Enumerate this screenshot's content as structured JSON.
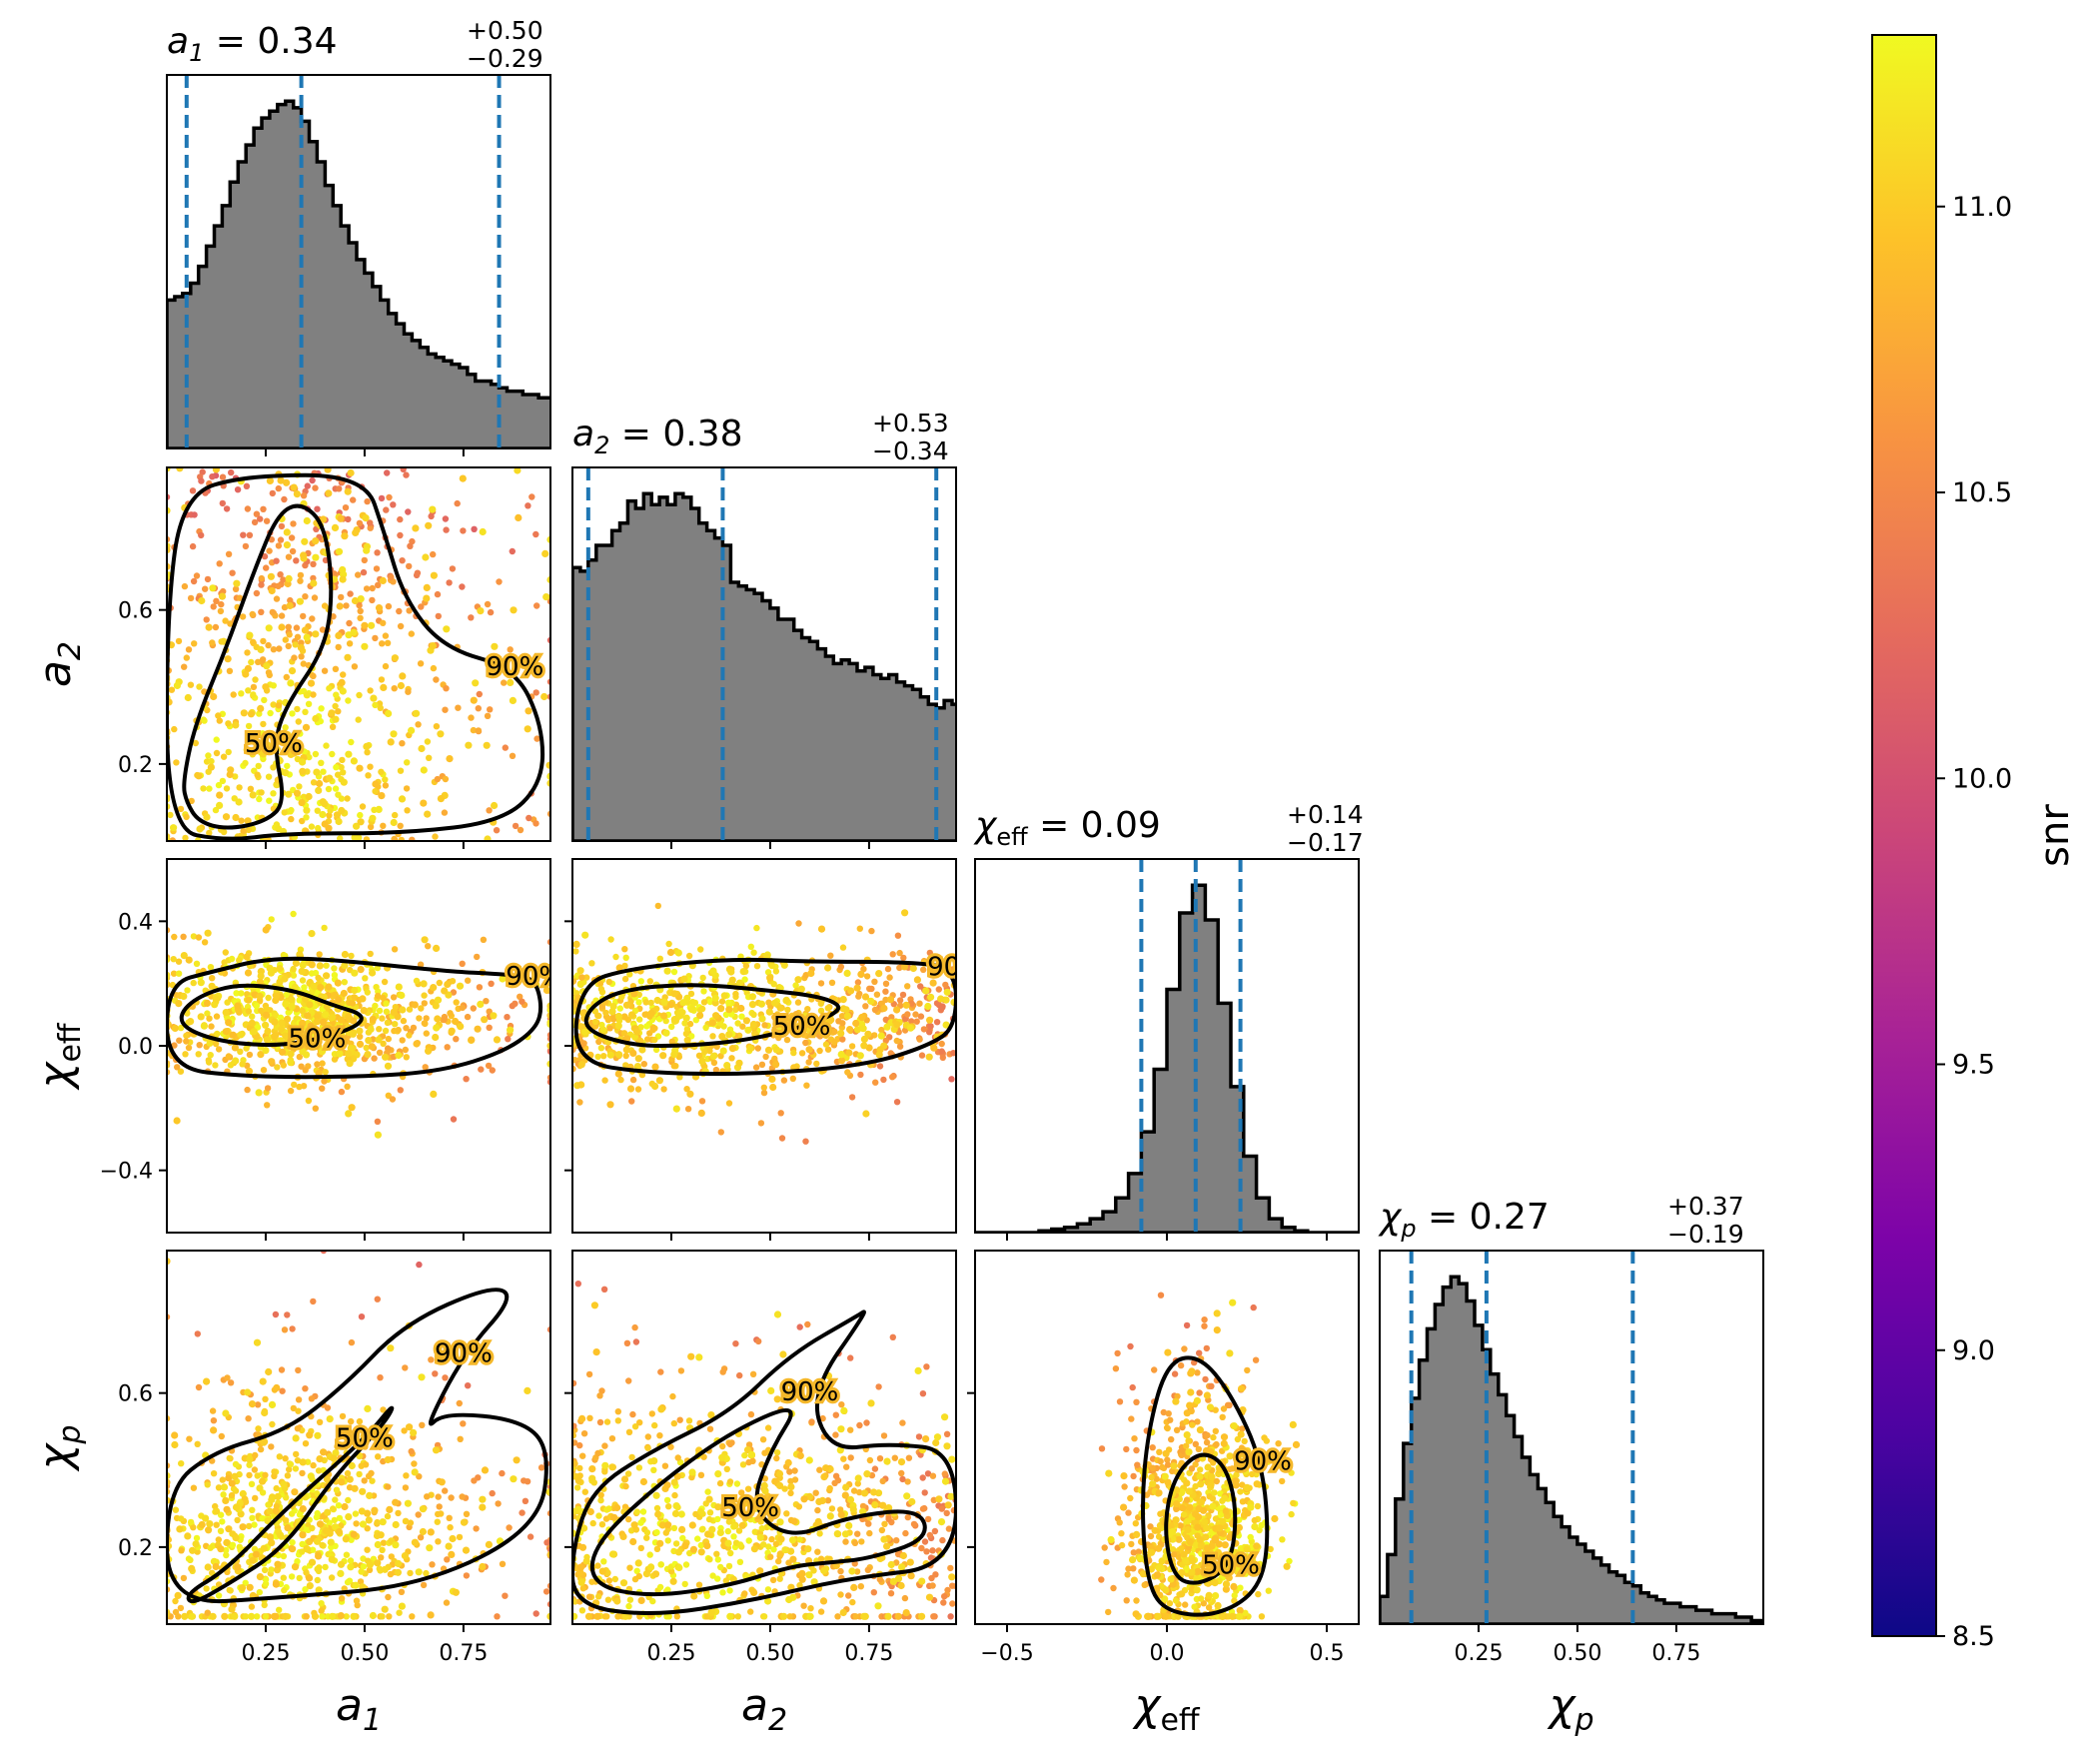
{
  "chart_data": {
    "type": "corner",
    "colormap": "plasma",
    "colors": {
      "histogram_fill": "#808080",
      "quantile_line": "#1f77b4",
      "contour": "#000000"
    },
    "parameters": [
      {
        "id": "a1",
        "label": "a",
        "label_sub": "1",
        "label_sub_style": "italic",
        "range": [
          0.0,
          0.97
        ],
        "ticks": [
          0.25,
          0.5,
          0.75
        ],
        "tick_labels": [
          "0.25",
          "0.50",
          "0.75"
        ],
        "title": {
          "median": "0.34",
          "plus": "+0.50",
          "minus": "−0.29"
        },
        "quantiles": [
          0.05,
          0.34,
          0.84
        ],
        "hist_x": [
          0.0,
          0.02,
          0.04,
          0.06,
          0.08,
          0.1,
          0.12,
          0.14,
          0.16,
          0.18,
          0.2,
          0.22,
          0.24,
          0.26,
          0.28,
          0.3,
          0.32,
          0.34,
          0.36,
          0.38,
          0.4,
          0.42,
          0.44,
          0.46,
          0.48,
          0.5,
          0.52,
          0.54,
          0.56,
          0.58,
          0.6,
          0.62,
          0.64,
          0.66,
          0.68,
          0.7,
          0.72,
          0.74,
          0.76,
          0.78,
          0.8,
          0.82,
          0.84,
          0.86,
          0.88,
          0.9,
          0.92,
          0.94,
          0.96
        ],
        "hist_counts": [
          0.44,
          0.45,
          0.46,
          0.49,
          0.54,
          0.6,
          0.66,
          0.72,
          0.79,
          0.85,
          0.9,
          0.95,
          0.98,
          1.0,
          1.02,
          1.03,
          1.01,
          0.97,
          0.91,
          0.85,
          0.78,
          0.72,
          0.66,
          0.61,
          0.56,
          0.52,
          0.48,
          0.44,
          0.4,
          0.37,
          0.34,
          0.32,
          0.3,
          0.28,
          0.27,
          0.26,
          0.25,
          0.24,
          0.22,
          0.2,
          0.2,
          0.19,
          0.18,
          0.17,
          0.17,
          0.16,
          0.16,
          0.15,
          0.15
        ]
      },
      {
        "id": "a2",
        "label": "a",
        "label_sub": "2",
        "label_sub_style": "italic",
        "range": [
          0.0,
          0.97
        ],
        "ticks": [
          0.25,
          0.5,
          0.75
        ],
        "tick_labels": [
          "0.25",
          "0.50",
          "0.75"
        ],
        "y_ticks": [
          0.2,
          0.6
        ],
        "y_tick_labels": [
          "0.2",
          "0.6"
        ],
        "title": {
          "median": "0.38",
          "plus": "+0.53",
          "minus": "−0.34"
        },
        "quantiles": [
          0.04,
          0.38,
          0.92
        ],
        "hist_x": [
          0.0,
          0.02,
          0.04,
          0.06,
          0.08,
          0.1,
          0.12,
          0.14,
          0.16,
          0.18,
          0.2,
          0.22,
          0.24,
          0.26,
          0.28,
          0.3,
          0.32,
          0.34,
          0.36,
          0.38,
          0.4,
          0.42,
          0.44,
          0.46,
          0.48,
          0.5,
          0.52,
          0.54,
          0.56,
          0.58,
          0.6,
          0.62,
          0.64,
          0.66,
          0.68,
          0.7,
          0.72,
          0.74,
          0.76,
          0.78,
          0.8,
          0.82,
          0.84,
          0.86,
          0.88,
          0.9,
          0.92,
          0.94,
          0.96
        ],
        "hist_counts": [
          0.74,
          0.73,
          0.76,
          0.8,
          0.8,
          0.84,
          0.86,
          0.92,
          0.9,
          0.94,
          0.91,
          0.93,
          0.91,
          0.94,
          0.93,
          0.9,
          0.86,
          0.84,
          0.82,
          0.8,
          0.7,
          0.69,
          0.68,
          0.67,
          0.65,
          0.63,
          0.6,
          0.6,
          0.57,
          0.55,
          0.54,
          0.52,
          0.5,
          0.48,
          0.49,
          0.48,
          0.46,
          0.47,
          0.45,
          0.44,
          0.45,
          0.43,
          0.42,
          0.41,
          0.39,
          0.37,
          0.36,
          0.38,
          0.37
        ]
      },
      {
        "id": "chi_eff",
        "label": "χ",
        "label_sub": "eff",
        "label_sub_style": "upright",
        "range": [
          -0.6,
          0.6
        ],
        "ticks": [
          -0.5,
          0.0,
          0.5
        ],
        "tick_labels": [
          "−0.5",
          "0.0",
          "0.5"
        ],
        "y_ticks": [
          -0.4,
          0.0,
          0.4
        ],
        "y_tick_labels": [
          "−0.4",
          "0.0",
          "0.4"
        ],
        "title": {
          "median": "0.09",
          "plus": "+0.14",
          "minus": "−0.17"
        },
        "quantiles": [
          -0.08,
          0.09,
          0.23
        ],
        "hist_x": [
          -0.6,
          -0.56,
          -0.52,
          -0.48,
          -0.44,
          -0.4,
          -0.36,
          -0.32,
          -0.28,
          -0.24,
          -0.2,
          -0.16,
          -0.12,
          -0.08,
          -0.04,
          0.0,
          0.04,
          0.08,
          0.12,
          0.16,
          0.2,
          0.24,
          0.28,
          0.32,
          0.36,
          0.4,
          0.44,
          0.48,
          0.52,
          0.56
        ],
        "hist_counts": [
          0.0,
          0.0,
          0.0,
          0.0,
          0.0,
          0.005,
          0.01,
          0.015,
          0.025,
          0.04,
          0.06,
          0.1,
          0.17,
          0.29,
          0.47,
          0.7,
          0.92,
          1.0,
          0.9,
          0.66,
          0.42,
          0.22,
          0.1,
          0.04,
          0.015,
          0.005,
          0.0,
          0.0,
          0.0,
          0.0
        ]
      },
      {
        "id": "chi_p",
        "label": "χ",
        "label_sub": "p",
        "label_sub_style": "italic",
        "range": [
          0.0,
          0.97
        ],
        "ticks": [
          0.25,
          0.5,
          0.75
        ],
        "tick_labels": [
          "0.25",
          "0.50",
          "0.75"
        ],
        "y_ticks": [
          0.2,
          0.6
        ],
        "y_tick_labels": [
          "0.2",
          "0.6"
        ],
        "title": {
          "median": "0.27",
          "plus": "+0.37",
          "minus": "−0.19"
        },
        "quantiles": [
          0.08,
          0.27,
          0.64
        ],
        "hist_x": [
          0.0,
          0.02,
          0.04,
          0.06,
          0.08,
          0.1,
          0.12,
          0.14,
          0.16,
          0.18,
          0.2,
          0.22,
          0.24,
          0.26,
          0.28,
          0.3,
          0.32,
          0.34,
          0.36,
          0.38,
          0.4,
          0.42,
          0.44,
          0.46,
          0.48,
          0.5,
          0.52,
          0.54,
          0.56,
          0.58,
          0.6,
          0.62,
          0.64,
          0.66,
          0.68,
          0.7,
          0.72,
          0.74,
          0.76,
          0.78,
          0.8,
          0.82,
          0.84,
          0.86,
          0.88,
          0.9,
          0.92,
          0.94,
          0.96
        ],
        "hist_counts": [
          0.08,
          0.2,
          0.36,
          0.52,
          0.65,
          0.76,
          0.85,
          0.92,
          0.97,
          1.0,
          0.98,
          0.93,
          0.86,
          0.79,
          0.72,
          0.66,
          0.6,
          0.54,
          0.48,
          0.43,
          0.39,
          0.35,
          0.31,
          0.28,
          0.25,
          0.23,
          0.21,
          0.19,
          0.17,
          0.15,
          0.14,
          0.12,
          0.11,
          0.09,
          0.08,
          0.07,
          0.06,
          0.06,
          0.05,
          0.05,
          0.04,
          0.04,
          0.03,
          0.03,
          0.03,
          0.02,
          0.02,
          0.01,
          0.01
        ]
      }
    ],
    "contour_levels": [
      "50%",
      "90%"
    ],
    "contours": {
      "a1_a2": {
        "c50": [
          [
            0.05,
            0.1
          ],
          [
            0.08,
            0.05
          ],
          [
            0.15,
            0.03
          ],
          [
            0.25,
            0.05
          ],
          [
            0.3,
            0.1
          ],
          [
            0.27,
            0.25
          ],
          [
            0.3,
            0.35
          ],
          [
            0.4,
            0.5
          ],
          [
            0.42,
            0.65
          ],
          [
            0.4,
            0.82
          ],
          [
            0.34,
            0.88
          ],
          [
            0.28,
            0.85
          ],
          [
            0.22,
            0.7
          ],
          [
            0.15,
            0.5
          ],
          [
            0.07,
            0.3
          ],
          [
            0.04,
            0.15
          ]
        ],
        "c90": [
          [
            0.0,
            0.03
          ],
          [
            0.15,
            0.0
          ],
          [
            0.3,
            0.02
          ],
          [
            0.6,
            0.02
          ],
          [
            0.85,
            0.05
          ],
          [
            0.95,
            0.15
          ],
          [
            0.95,
            0.3
          ],
          [
            0.88,
            0.45
          ],
          [
            0.7,
            0.5
          ],
          [
            0.6,
            0.63
          ],
          [
            0.55,
            0.8
          ],
          [
            0.5,
            0.95
          ],
          [
            0.2,
            0.95
          ],
          [
            0.04,
            0.9
          ],
          [
            0.0,
            0.6
          ]
        ]
      },
      "a1_chi_eff": {
        "c50": [
          [
            0.05,
            0.05
          ],
          [
            0.15,
            0.01
          ],
          [
            0.28,
            0.0
          ],
          [
            0.38,
            0.02
          ],
          [
            0.48,
            0.06
          ],
          [
            0.5,
            0.1
          ],
          [
            0.42,
            0.13
          ],
          [
            0.32,
            0.18
          ],
          [
            0.18,
            0.2
          ],
          [
            0.08,
            0.16
          ],
          [
            0.03,
            0.1
          ]
        ],
        "c90": [
          [
            0.0,
            -0.07
          ],
          [
            0.2,
            -0.1
          ],
          [
            0.5,
            -0.1
          ],
          [
            0.7,
            -0.08
          ],
          [
            0.85,
            -0.02
          ],
          [
            0.93,
            0.05
          ],
          [
            0.95,
            0.12
          ],
          [
            0.93,
            0.22
          ],
          [
            0.85,
            0.23
          ],
          [
            0.7,
            0.24
          ],
          [
            0.4,
            0.28
          ],
          [
            0.25,
            0.28
          ],
          [
            0.12,
            0.24
          ],
          [
            0.0,
            0.2
          ]
        ]
      },
      "a2_chi_eff": {
        "c50": [
          [
            0.03,
            0.05
          ],
          [
            0.15,
            0.0
          ],
          [
            0.3,
            0.0
          ],
          [
            0.45,
            0.02
          ],
          [
            0.58,
            0.06
          ],
          [
            0.66,
            0.1
          ],
          [
            0.68,
            0.13
          ],
          [
            0.62,
            0.16
          ],
          [
            0.48,
            0.18
          ],
          [
            0.3,
            0.2
          ],
          [
            0.12,
            0.18
          ],
          [
            0.04,
            0.12
          ]
        ],
        "c90": [
          [
            0.0,
            -0.05
          ],
          [
            0.2,
            -0.09
          ],
          [
            0.5,
            -0.09
          ],
          [
            0.75,
            -0.06
          ],
          [
            0.9,
            0.0
          ],
          [
            0.97,
            0.06
          ],
          [
            0.97,
            0.25
          ],
          [
            0.85,
            0.27
          ],
          [
            0.6,
            0.27
          ],
          [
            0.4,
            0.28
          ],
          [
            0.15,
            0.25
          ],
          [
            0.02,
            0.2
          ]
        ]
      },
      "a1_chi_p": {
        "c50": [
          [
            0.05,
            0.08
          ],
          [
            0.15,
            0.14
          ],
          [
            0.3,
            0.3
          ],
          [
            0.5,
            0.48
          ],
          [
            0.58,
            0.58
          ],
          [
            0.55,
            0.52
          ],
          [
            0.42,
            0.38
          ],
          [
            0.3,
            0.2
          ],
          [
            0.15,
            0.1
          ],
          [
            0.06,
            0.05
          ]
        ],
        "c90": [
          [
            0.0,
            0.05
          ],
          [
            0.3,
            0.07
          ],
          [
            0.65,
            0.1
          ],
          [
            0.94,
            0.25
          ],
          [
            0.97,
            0.45
          ],
          [
            0.9,
            0.53
          ],
          [
            0.7,
            0.55
          ],
          [
            0.65,
            0.5
          ],
          [
            0.75,
            0.7
          ],
          [
            0.88,
            0.85
          ],
          [
            0.82,
            0.88
          ],
          [
            0.6,
            0.78
          ],
          [
            0.45,
            0.62
          ],
          [
            0.3,
            0.5
          ],
          [
            0.12,
            0.45
          ],
          [
            0.0,
            0.35
          ]
        ]
      },
      "a2_chi_p": {
        "c50": [
          [
            0.05,
            0.2
          ],
          [
            0.2,
            0.35
          ],
          [
            0.4,
            0.5
          ],
          [
            0.58,
            0.58
          ],
          [
            0.5,
            0.45
          ],
          [
            0.45,
            0.3
          ],
          [
            0.55,
            0.22
          ],
          [
            0.7,
            0.28
          ],
          [
            0.88,
            0.3
          ],
          [
            0.9,
            0.22
          ],
          [
            0.75,
            0.17
          ],
          [
            0.65,
            0.16
          ],
          [
            0.55,
            0.15
          ],
          [
            0.4,
            0.1
          ],
          [
            0.2,
            0.07
          ],
          [
            0.05,
            0.1
          ]
        ],
        "c90": [
          [
            0.0,
            0.05
          ],
          [
            0.2,
            0.02
          ],
          [
            0.45,
            0.06
          ],
          [
            0.7,
            0.12
          ],
          [
            0.97,
            0.15
          ],
          [
            0.97,
            0.45
          ],
          [
            0.8,
            0.47
          ],
          [
            0.65,
            0.45
          ],
          [
            0.6,
            0.6
          ],
          [
            0.75,
            0.82
          ],
          [
            0.72,
            0.8
          ],
          [
            0.55,
            0.7
          ],
          [
            0.4,
            0.55
          ],
          [
            0.2,
            0.45
          ],
          [
            0.05,
            0.35
          ],
          [
            0.0,
            0.2
          ]
        ]
      },
      "chi_eff_chi_p": {
        "c50": [
          [
            0.02,
            0.12
          ],
          [
            0.1,
            0.1
          ],
          [
            0.2,
            0.15
          ],
          [
            0.22,
            0.3
          ],
          [
            0.18,
            0.42
          ],
          [
            0.1,
            0.45
          ],
          [
            0.02,
            0.38
          ],
          [
            -0.01,
            0.25
          ]
        ],
        "c90": [
          [
            -0.06,
            0.1
          ],
          [
            0.0,
            0.03
          ],
          [
            0.15,
            0.02
          ],
          [
            0.28,
            0.08
          ],
          [
            0.32,
            0.2
          ],
          [
            0.3,
            0.42
          ],
          [
            0.2,
            0.6
          ],
          [
            0.1,
            0.7
          ],
          [
            0.0,
            0.68
          ],
          [
            -0.06,
            0.5
          ],
          [
            -0.08,
            0.3
          ]
        ]
      }
    },
    "colorbar": {
      "label": "snr",
      "range": [
        8.5,
        11.3
      ],
      "ticks": [
        8.5,
        9.0,
        9.5,
        10.0,
        10.5,
        11.0
      ],
      "tick_labels": [
        "8.5",
        "9.0",
        "9.5",
        "10.0",
        "10.5",
        "11.0"
      ]
    }
  }
}
